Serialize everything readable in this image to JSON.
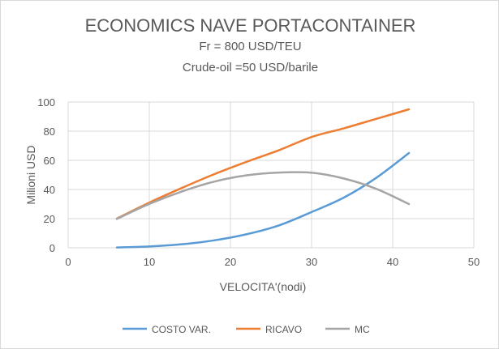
{
  "chart_data": {
    "type": "line",
    "title": "ECONOMICS NAVE PORTACONTAINER",
    "subtitle": [
      "Fr = 800 USD/TEU",
      "Crude-oil =50 USD/barile"
    ],
    "xlabel": "VELOCITA'(nodi)",
    "ylabel": "Milioni USD",
    "xlim": [
      0,
      50
    ],
    "ylim": [
      0,
      100
    ],
    "xticks": [
      0,
      10,
      20,
      30,
      40,
      50
    ],
    "yticks": [
      0,
      20,
      40,
      60,
      80,
      100
    ],
    "grid": true,
    "legend": "bottom",
    "x": [
      6,
      10,
      14,
      18,
      22,
      26,
      30,
      34,
      38,
      42
    ],
    "series": [
      {
        "name": "COSTO VAR.",
        "color": "#5b9bd5",
        "values": [
          0.2,
          0.9,
          2.4,
          5.1,
          9.3,
          15.4,
          24.5,
          34.5,
          48.1,
          65
        ]
      },
      {
        "name": "RICAVO",
        "color": "#ed7d31",
        "values": [
          20,
          31,
          41,
          50.5,
          59,
          67,
          76,
          82,
          88.5,
          95
        ]
      },
      {
        "name": "MC",
        "color": "#a5a5a5",
        "values": [
          19.8,
          30.1,
          38.6,
          45.4,
          49.7,
          51.6,
          51.5,
          47.5,
          40.4,
          30
        ]
      }
    ]
  }
}
